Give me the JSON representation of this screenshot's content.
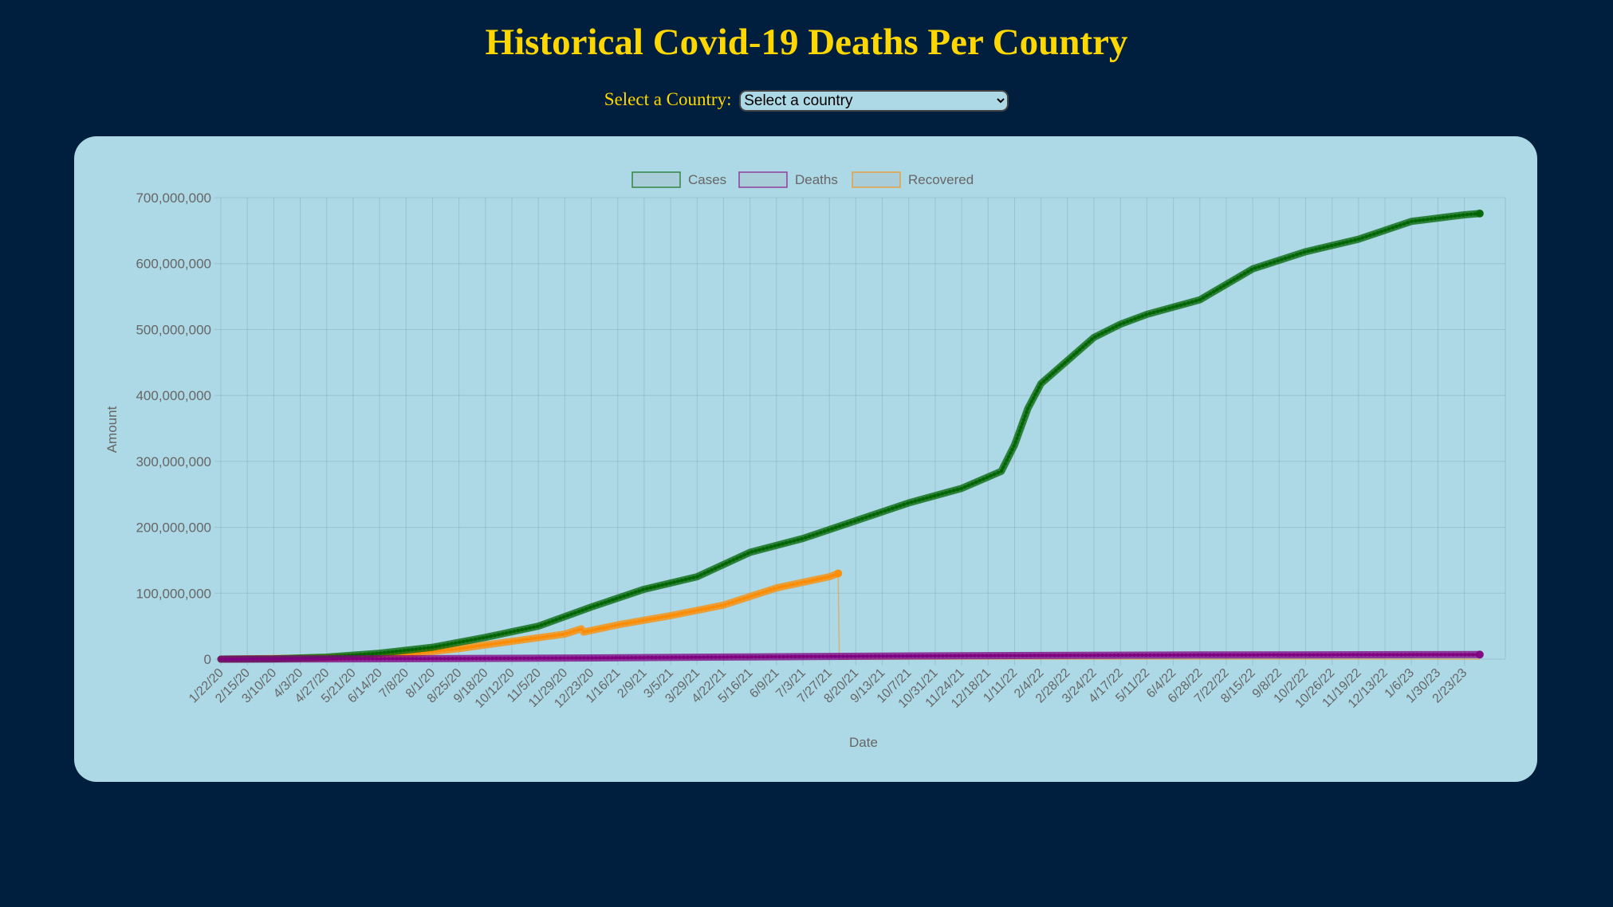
{
  "page": {
    "title": "Historical Covid-19 Deaths Per Country"
  },
  "selector": {
    "label": "Select a Country:",
    "selected": "Select a country"
  },
  "colors": {
    "background": "#001f3f",
    "title": "#ffd700",
    "card": "#add8e6",
    "cases": "#006400",
    "deaths": "#800080",
    "recovered": "#ff8c00"
  },
  "chart_data": {
    "type": "line",
    "title": "",
    "xlabel": "Date",
    "ylabel": "Amount",
    "ylim": [
      0,
      700000000
    ],
    "yticks": [
      "0",
      "100,000,000",
      "200,000,000",
      "300,000,000",
      "400,000,000",
      "500,000,000",
      "600,000,000",
      "700,000,000"
    ],
    "xticks": [
      "1/22/20",
      "2/15/20",
      "3/10/20",
      "4/3/20",
      "4/27/20",
      "5/21/20",
      "6/14/20",
      "7/8/20",
      "8/1/20",
      "8/25/20",
      "9/18/20",
      "10/12/20",
      "11/5/20",
      "11/29/20",
      "12/23/20",
      "1/16/21",
      "2/9/21",
      "3/5/21",
      "3/29/21",
      "4/22/21",
      "5/16/21",
      "6/9/21",
      "7/3/21",
      "7/27/21",
      "8/20/21",
      "9/13/21",
      "10/7/21",
      "10/31/21",
      "11/24/21",
      "12/18/21",
      "1/11/22",
      "2/4/22",
      "2/28/22",
      "3/24/22",
      "4/17/22",
      "5/11/22",
      "6/4/22",
      "6/28/22",
      "7/22/22",
      "8/15/22",
      "9/8/22",
      "10/2/22",
      "10/26/22",
      "11/19/22",
      "12/13/22",
      "1/6/23",
      "1/30/23",
      "2/23/23"
    ],
    "legend_position": "top",
    "grid": true,
    "series": [
      {
        "name": "Cases",
        "color": "#006400",
        "x": [
          "1/22/20",
          "3/10/20",
          "4/27/20",
          "6/14/20",
          "8/1/20",
          "9/18/20",
          "11/5/20",
          "12/23/20",
          "2/9/21",
          "3/29/21",
          "5/16/21",
          "7/3/21",
          "8/20/21",
          "10/7/21",
          "11/24/21",
          "12/30/21",
          "1/11/22",
          "1/23/22",
          "2/4/22",
          "2/28/22",
          "3/24/22",
          "4/17/22",
          "5/11/22",
          "6/28/22",
          "8/15/22",
          "10/2/22",
          "11/19/22",
          "1/6/23",
          "2/23/23",
          "3/9/23"
        ],
        "values": [
          0,
          500000,
          3000000,
          9000000,
          18000000,
          33000000,
          50000000,
          79000000,
          106000000,
          125000000,
          162000000,
          183000000,
          210000000,
          237000000,
          259000000,
          285000000,
          325000000,
          380000000,
          418000000,
          453000000,
          488000000,
          508000000,
          523000000,
          545000000,
          592000000,
          618000000,
          637000000,
          664000000,
          674000000,
          676000000
        ]
      },
      {
        "name": "Deaths",
        "color": "#800080",
        "x": [
          "1/22/20",
          "8/1/20",
          "12/23/20",
          "5/16/21",
          "11/24/21",
          "6/28/22",
          "3/9/23"
        ],
        "values": [
          0,
          700000,
          1800000,
          3400000,
          5200000,
          6300000,
          6880000
        ]
      },
      {
        "name": "Recovered",
        "color": "#ff8c00",
        "x": [
          "1/22/20",
          "4/27/20",
          "7/8/20",
          "8/25/20",
          "10/12/20",
          "11/29/20",
          "12/14/20",
          "12/16/20",
          "1/16/21",
          "3/5/21",
          "4/22/21",
          "6/9/21",
          "7/27/21",
          "8/4/21",
          "8/5/21",
          "3/9/23"
        ],
        "values": [
          0,
          2000000,
          7000000,
          16000000,
          27000000,
          38000000,
          46000000,
          41000000,
          52000000,
          66000000,
          82000000,
          108000000,
          125000000,
          130000000,
          0,
          0
        ]
      }
    ]
  }
}
